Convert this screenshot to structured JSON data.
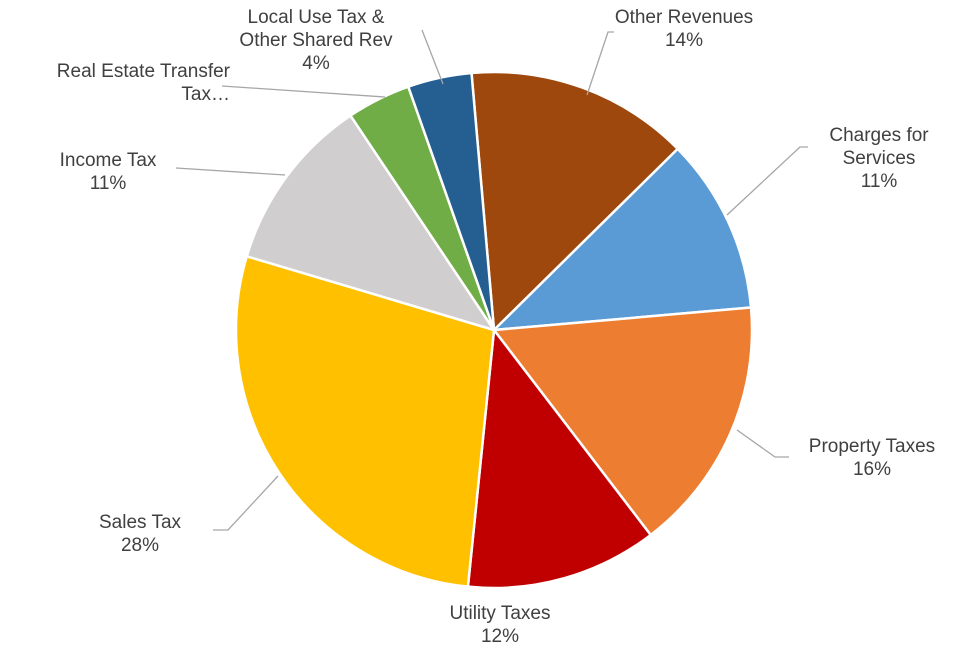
{
  "chart_data": {
    "type": "pie",
    "categories": [
      "Other Revenues",
      "Charges for Services",
      "Property Taxes",
      "Utility Taxes",
      "Sales Tax",
      "Income Tax",
      "Real Estate Transfer Tax…",
      "Local Use Tax & Other Shared Rev"
    ],
    "values": [
      14,
      11,
      16,
      12,
      28,
      11,
      4,
      4
    ],
    "value_labels": [
      "14%",
      "11%",
      "16%",
      "12%",
      "28%",
      "11%",
      null,
      "4%"
    ],
    "colors": [
      "#9e480e",
      "#5b9bd5",
      "#ed7d31",
      "#c00000",
      "#ffc000",
      "#d0cece",
      "#70ad47",
      "#255e91"
    ]
  }
}
